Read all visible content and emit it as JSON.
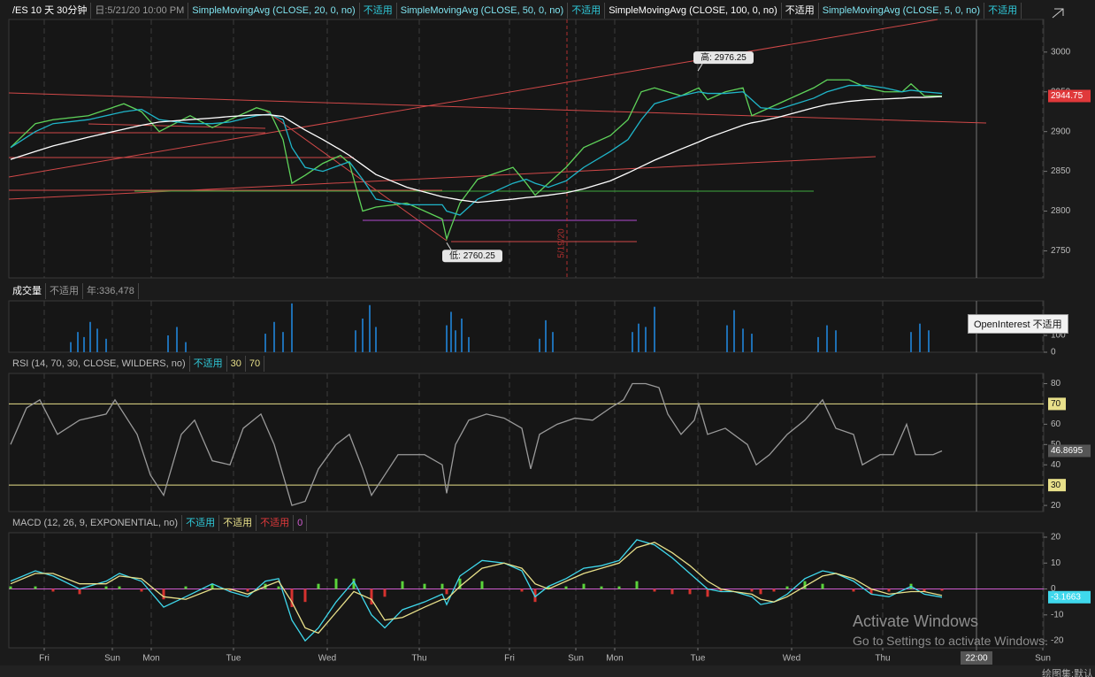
{
  "chart_data": [
    {
      "type": "line",
      "header": [
        {
          "text": "/ES 10 天 30分钟",
          "color": "#ffffff"
        },
        {
          "text": "日:5/21/20 10:00 PM",
          "color": "#9a9a9a"
        },
        {
          "text": "SimpleMovingAvg (CLOSE, 20, 0, no)",
          "color": "#7fe3ef"
        },
        {
          "text": "不适用",
          "color": "#2fc9d9"
        },
        {
          "text": "SimpleMovingAvg (CLOSE, 50, 0, no)",
          "color": "#7fe3ef"
        },
        {
          "text": "不适用",
          "color": "#2fc9d9"
        },
        {
          "text": "SimpleMovingAvg (CLOSE, 100, 0, no)",
          "color": "#ffffff"
        },
        {
          "text": "不适用",
          "color": "#ffffff"
        },
        {
          "text": "SimpleMovingAvg (CLOSE, 5, 0, no)",
          "color": "#7fe3ef"
        },
        {
          "text": "不适用",
          "color": "#2fc9d9"
        }
      ],
      "x": [
        2,
        30,
        50,
        90,
        130,
        150,
        170,
        205,
        230,
        250,
        280,
        295,
        310,
        320,
        335,
        355,
        375,
        385,
        400,
        415,
        450,
        490,
        495,
        510,
        530,
        570,
        585,
        595,
        610,
        630,
        650,
        680,
        700,
        715,
        730,
        760,
        780,
        790,
        810,
        830,
        840,
        850,
        870,
        890,
        910,
        925,
        950,
        970,
        990,
        1010,
        1020,
        1035,
        1055
      ],
      "series": [
        {
          "color": "#5fd35a",
          "tag_color": "#e0393b",
          "values": [
            2880,
            2910,
            2915,
            2920,
            2935,
            2925,
            2900,
            2920,
            2905,
            2915,
            2930,
            2925,
            2890,
            2835,
            2845,
            2860,
            2870,
            2860,
            2800,
            2805,
            2810,
            2790,
            2765,
            2810,
            2840,
            2855,
            2835,
            2820,
            2835,
            2855,
            2880,
            2895,
            2915,
            2950,
            2955,
            2945,
            2955,
            2940,
            2950,
            2955,
            2920,
            2925,
            2935,
            2945,
            2955,
            2965,
            2965,
            2955,
            2950,
            2950,
            2960,
            2945,
            2944.75
          ]
        },
        {
          "color": "#1fb5c9",
          "values": [
            2880,
            2900,
            2910,
            2915,
            2925,
            2928,
            2915,
            2910,
            2910,
            2912,
            2920,
            2922,
            2915,
            2880,
            2855,
            2850,
            2858,
            2862,
            2840,
            2815,
            2808,
            2808,
            2800,
            2795,
            2815,
            2835,
            2840,
            2835,
            2830,
            2838,
            2855,
            2875,
            2890,
            2915,
            2935,
            2945,
            2950,
            2948,
            2948,
            2950,
            2940,
            2930,
            2928,
            2935,
            2942,
            2950,
            2958,
            2958,
            2955,
            2950,
            2952,
            2950,
            2948
          ]
        },
        {
          "color": "#ffffff",
          "values": [
            2865,
            2875,
            2882,
            2893,
            2903,
            2908,
            2912,
            2915,
            2917,
            2919,
            2921,
            2921,
            2919,
            2912,
            2902,
            2890,
            2877,
            2870,
            2858,
            2846,
            2830,
            2818,
            2817,
            2814,
            2811,
            2815,
            2817,
            2818,
            2820,
            2823,
            2828,
            2838,
            2848,
            2856,
            2864,
            2878,
            2887,
            2892,
            2900,
            2908,
            2911,
            2913,
            2918,
            2924,
            2930,
            2934,
            2938,
            2940,
            2941,
            2942,
            2943,
            2943,
            2944
          ]
        }
      ],
      "xlim": [
        0,
        1170
      ],
      "ylim": [
        2716,
        3041
      ],
      "yticks": [
        2750,
        2800,
        2850,
        2900,
        2950,
        3000
      ],
      "annotations": [
        {
          "label": "高: 2976.25",
          "x": 779,
          "y": 2976.25
        },
        {
          "label": "低: 2760.25",
          "x": 495,
          "y": 2760.25
        }
      ],
      "marker": {
        "label": "5/19/20",
        "x": 631
      }
    },
    {
      "type": "bar",
      "header": [
        {
          "text": "成交量",
          "color": "#ffffff"
        },
        {
          "text": "不适用",
          "color": "#9a9a9a"
        },
        {
          "text": "年:336,478",
          "color": "#9a9a9a"
        }
      ],
      "x": [
        70,
        78,
        85,
        92,
        100,
        110,
        180,
        190,
        200,
        290,
        300,
        310,
        320,
        392,
        400,
        408,
        415,
        495,
        500,
        505,
        512,
        520,
        600,
        607,
        615,
        705,
        712,
        720,
        730,
        812,
        820,
        830,
        840,
        915,
        925,
        935,
        1020,
        1030,
        1040
      ],
      "values": [
        60,
        120,
        90,
        180,
        140,
        80,
        100,
        150,
        60,
        110,
        180,
        120,
        290,
        130,
        200,
        280,
        150,
        160,
        240,
        130,
        200,
        90,
        80,
        190,
        120,
        120,
        170,
        150,
        270,
        160,
        250,
        140,
        110,
        90,
        160,
        130,
        120,
        170,
        130
      ],
      "color": "#1e6fb3",
      "xlim": [
        0,
        1170
      ],
      "ylim": [
        0,
        305
      ],
      "yticks": [
        0,
        100
      ]
    },
    {
      "type": "line",
      "header": [
        {
          "text": "RSI (14, 70, 30, CLOSE, WILDERS, no)",
          "color": "#bbbbbb"
        },
        {
          "text": "不适用",
          "color": "#2fc9d9"
        }
      ],
      "overbought": 70,
      "oversold": 30,
      "level_color": "#e8e08a",
      "x": [
        2,
        20,
        35,
        55,
        80,
        110,
        120,
        145,
        160,
        175,
        195,
        210,
        230,
        250,
        265,
        285,
        300,
        310,
        320,
        335,
        350,
        370,
        385,
        400,
        410,
        425,
        440,
        470,
        490,
        495,
        505,
        520,
        540,
        560,
        580,
        590,
        600,
        620,
        640,
        660,
        680,
        695,
        705,
        720,
        735,
        745,
        760,
        775,
        780,
        790,
        810,
        835,
        845,
        860,
        880,
        900,
        920,
        935,
        955,
        965,
        985,
        1000,
        1015,
        1025,
        1045,
        1055
      ],
      "series": [
        {
          "color": "#9a9a9a",
          "tag_color": "#555555",
          "values": [
            50,
            68,
            72,
            55,
            62,
            65,
            72,
            55,
            35,
            25,
            55,
            62,
            42,
            40,
            58,
            65,
            50,
            35,
            20,
            22,
            38,
            50,
            55,
            38,
            25,
            35,
            45,
            45,
            40,
            26,
            50,
            62,
            65,
            63,
            58,
            38,
            55,
            60,
            63,
            62,
            68,
            72,
            80,
            80,
            78,
            65,
            55,
            62,
            70,
            55,
            58,
            50,
            40,
            45,
            55,
            62,
            72,
            58,
            55,
            40,
            45,
            45,
            60,
            45,
            45,
            46.8695
          ]
        }
      ],
      "xlim": [
        0,
        1170
      ],
      "ylim": [
        17,
        85
      ],
      "yticks": [
        20,
        40,
        50,
        60,
        80
      ]
    },
    {
      "type": "line",
      "header": [
        {
          "text": "MACD (12, 26, 9, EXPONENTIAL, no)",
          "color": "#bbbbbb"
        },
        {
          "text": "不适用",
          "color": "#2fc9d9"
        },
        {
          "text": "不适用",
          "color": "#e8e08a"
        },
        {
          "text": "不适用",
          "color": "#e0393b"
        },
        {
          "text": "0",
          "color": "#d05cd0"
        }
      ],
      "zero_line_color": "#d05cd0",
      "x": [
        2,
        30,
        50,
        80,
        110,
        125,
        150,
        175,
        200,
        230,
        250,
        270,
        290,
        305,
        320,
        335,
        350,
        370,
        390,
        410,
        425,
        445,
        470,
        490,
        495,
        510,
        535,
        560,
        580,
        595,
        610,
        630,
        650,
        670,
        690,
        710,
        730,
        750,
        770,
        790,
        805,
        820,
        840,
        850,
        865,
        880,
        900,
        920,
        935,
        955,
        975,
        995,
        1020,
        1035,
        1055
      ],
      "series": [
        {
          "style": "histogram",
          "up_color": "#5ad33a",
          "down_color": "#d6322f",
          "values": [
            1,
            1,
            -1,
            -2,
            1,
            1,
            -1,
            -4,
            1,
            2,
            -1,
            -1,
            2,
            1,
            -7,
            -5,
            2,
            4,
            4,
            -6,
            -3,
            3,
            2,
            2,
            -2,
            4,
            3,
            0,
            -1,
            -5,
            1,
            1,
            2,
            1,
            1,
            3,
            -1,
            -2,
            -2,
            -3,
            -1,
            0,
            -1,
            -2,
            -1,
            1,
            3,
            2,
            0,
            -1,
            -2,
            -1,
            2,
            -1,
            -0.6663
          ]
        },
        {
          "color": "#3fd8ec",
          "tag_color": "#3fd8ec",
          "values": [
            3,
            7,
            5,
            0,
            3,
            6,
            3,
            -7,
            -3,
            2,
            -1,
            -3,
            3,
            4,
            -12,
            -20,
            -15,
            -5,
            3,
            -10,
            -15,
            -8,
            -5,
            -2,
            -6,
            5,
            11,
            10,
            7,
            -3,
            1,
            4,
            8,
            9,
            11,
            19,
            17,
            12,
            6,
            0,
            -1,
            -1,
            -3,
            -6,
            -5,
            -2,
            4,
            7,
            6,
            3,
            -2,
            -3,
            1,
            -2,
            -3.1663
          ]
        },
        {
          "color": "#e8e08a",
          "values": [
            2,
            6,
            6,
            2,
            2,
            5,
            4,
            -3,
            -4,
            0,
            0,
            -2,
            1,
            3,
            -5,
            -15,
            -17,
            -9,
            -1,
            -4,
            -12,
            -11,
            -7,
            -4,
            -4,
            1,
            8,
            10,
            8,
            2,
            0,
            3,
            6,
            8,
            10,
            16,
            18,
            14,
            9,
            3,
            0,
            -1,
            -2,
            -4,
            -5,
            -3,
            1,
            5,
            6,
            4,
            0,
            -2,
            -1,
            -1,
            -2.5
          ]
        }
      ],
      "xlim": [
        0,
        1170
      ],
      "ylim": [
        -22.7,
        21.7
      ],
      "yticks": [
        -20,
        -10,
        0,
        10,
        20
      ]
    }
  ],
  "time_axis": {
    "xlim": [
      0,
      1170
    ],
    "xticks": [
      {
        "value": 40,
        "label": "Fri"
      },
      {
        "value": 117,
        "label": "Sun"
      },
      {
        "value": 161,
        "label": "Mon"
      },
      {
        "value": 254,
        "label": "Tue"
      },
      {
        "value": 360,
        "label": "Wed"
      },
      {
        "value": 464,
        "label": "Thu"
      },
      {
        "value": 566,
        "label": "Fri"
      },
      {
        "value": 641,
        "label": "Sun"
      },
      {
        "value": 685,
        "label": "Mon"
      },
      {
        "value": 779,
        "label": "Tue"
      },
      {
        "value": 885,
        "label": "Wed"
      },
      {
        "value": 988,
        "label": "Thu"
      },
      {
        "value": 1094,
        "label": "22:00"
      },
      {
        "value": 1169,
        "label": "Sun"
      }
    ]
  },
  "overlay": {
    "tooltip": "OpenInterest 不适用",
    "watermark_title": "Activate Windows",
    "watermark_text": "Go to Settings to activate Windows.",
    "drawing_set": "绘图集:默认"
  }
}
